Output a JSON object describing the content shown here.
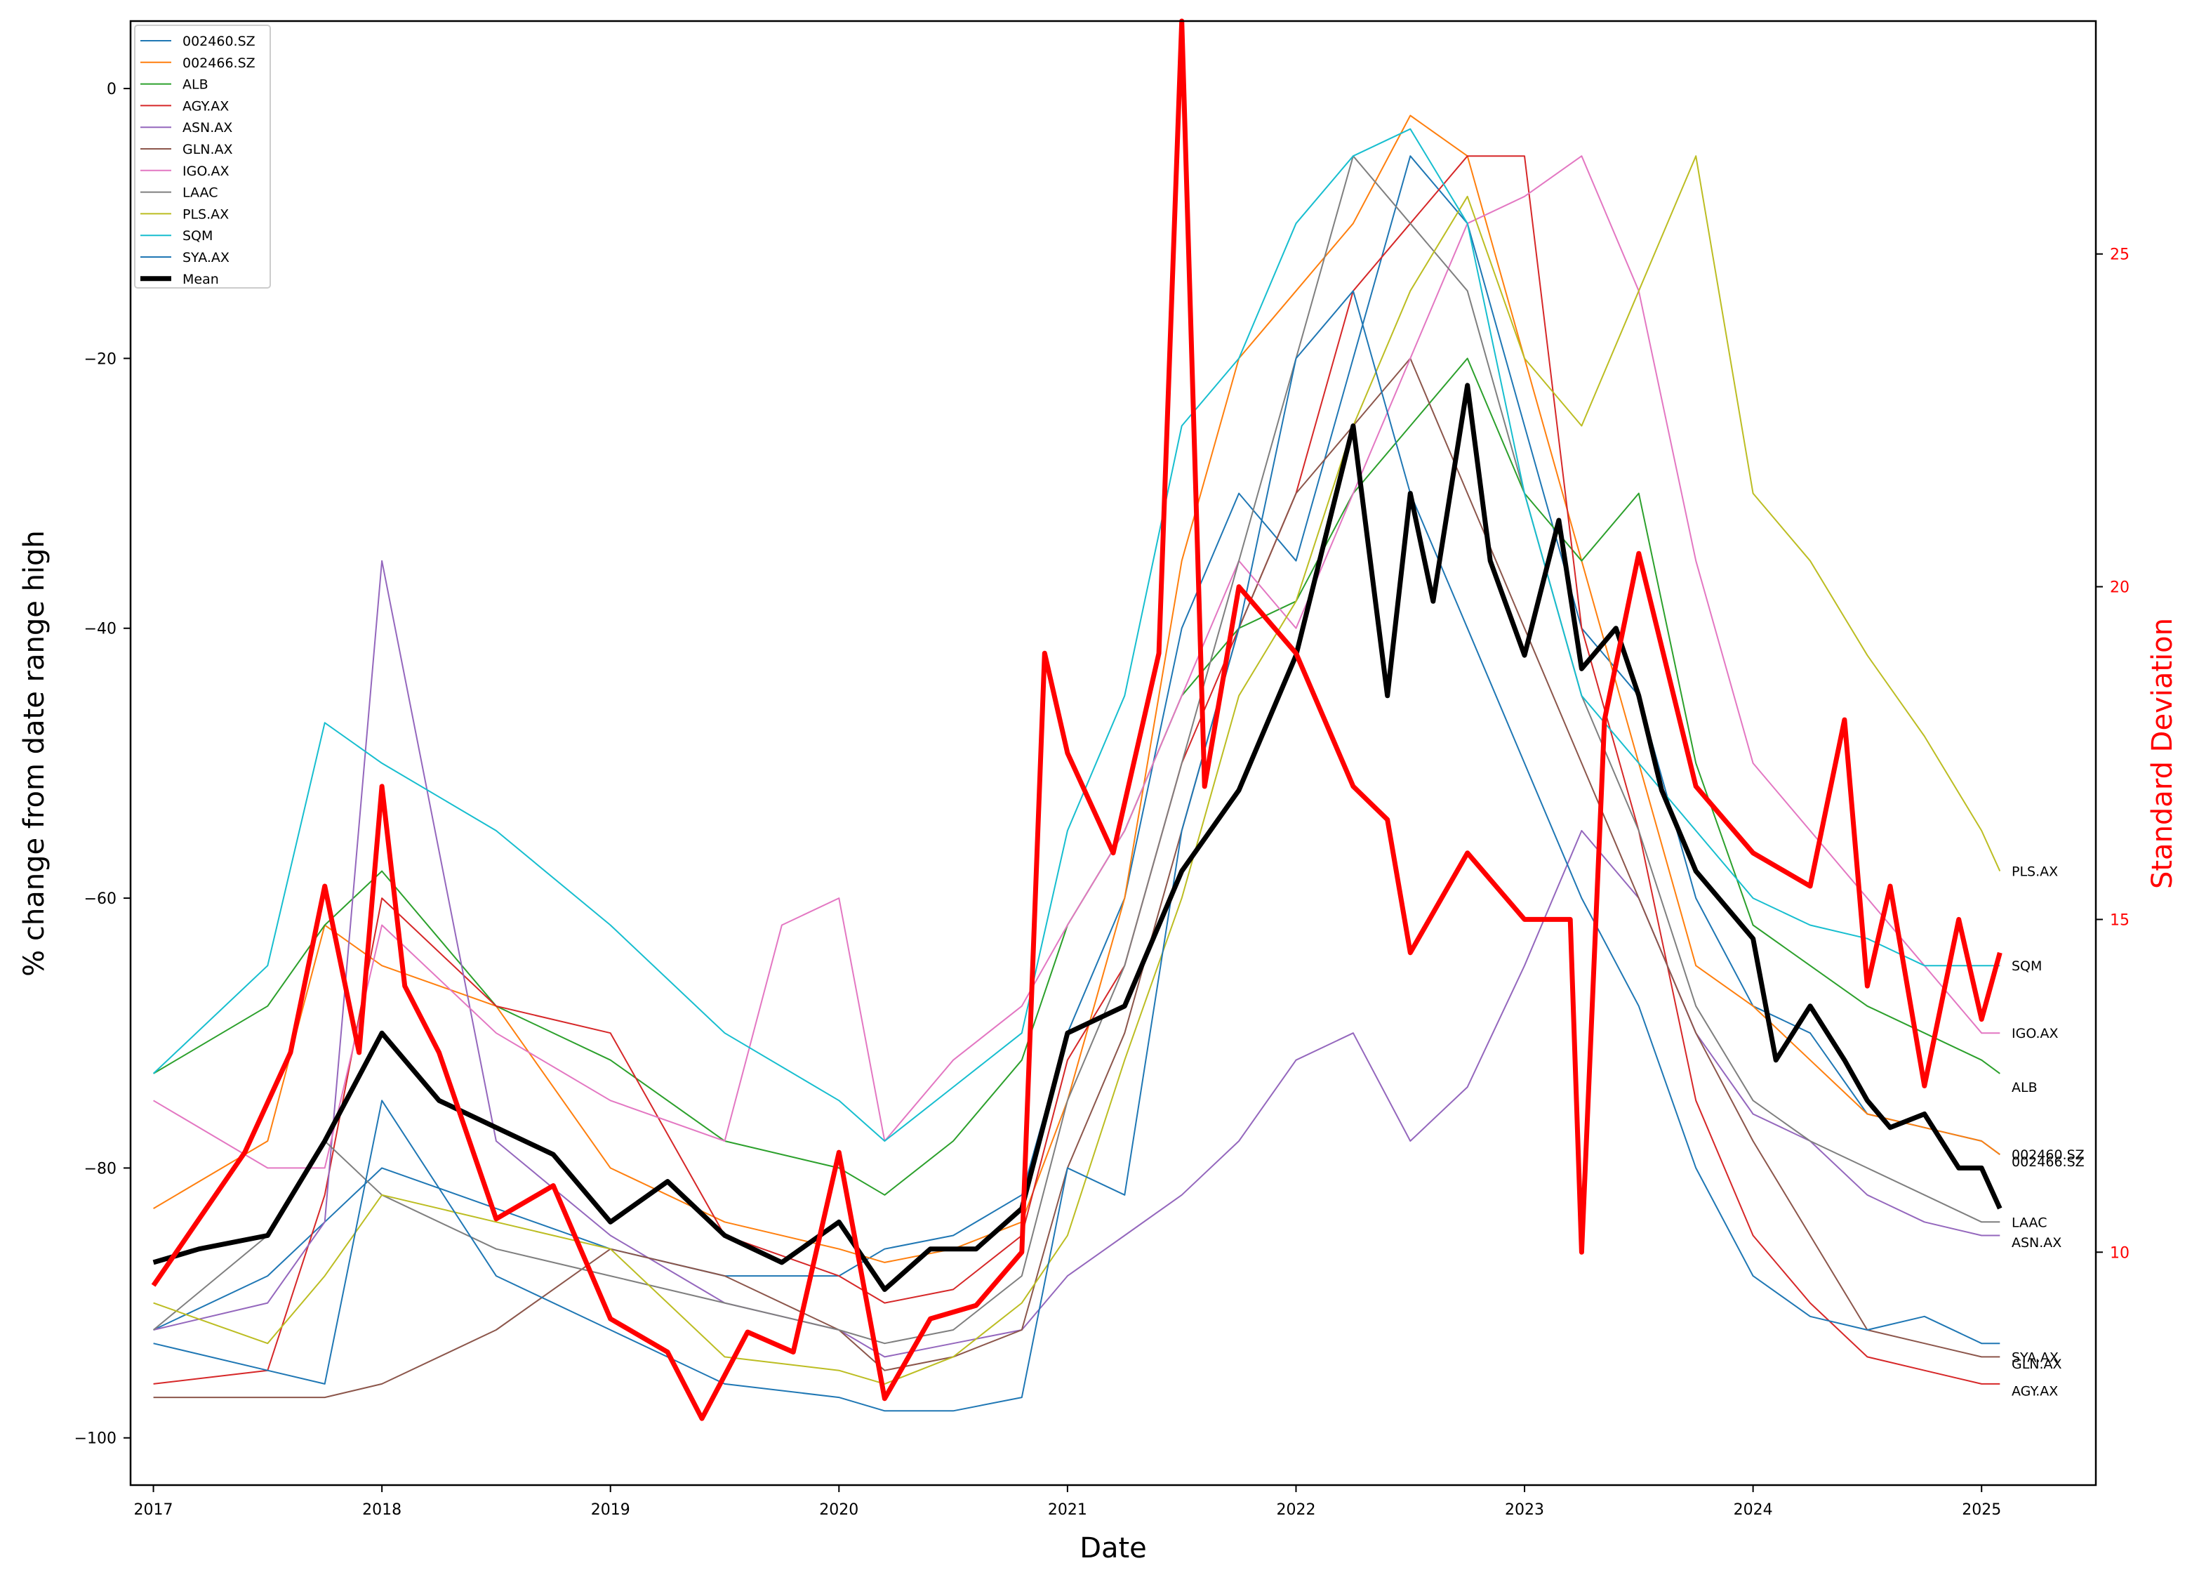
{
  "chart_data": {
    "type": "line",
    "title": "",
    "xlabel": "Date",
    "ylabel": "% change from date range high",
    "ylabel_right": "Standard Deviation",
    "xlim": [
      2016.9,
      2025.5
    ],
    "ylim": [
      -103.5,
      5
    ],
    "ylim_right": [
      6.5,
      28.5
    ],
    "x_ticks": [
      2017,
      2018,
      2019,
      2020,
      2021,
      2022,
      2023,
      2024,
      2025
    ],
    "x_tick_labels": [
      "2017",
      "2018",
      "2019",
      "2020",
      "2021",
      "2022",
      "2023",
      "2024",
      "2025"
    ],
    "y_ticks": [
      0,
      -20,
      -40,
      -60,
      -80,
      -100
    ],
    "y_tick_labels": [
      "0",
      "−20",
      "−40",
      "−60",
      "−80",
      "−100"
    ],
    "y_right_ticks": [
      10,
      15,
      20,
      25
    ],
    "y_right_tick_labels": [
      "10",
      "15",
      "20",
      "25"
    ],
    "grid": false,
    "legend_position": "top-left",
    "legend": [
      "002460.SZ",
      "002466.SZ",
      "ALB",
      "AGY.AX",
      "ASN.AX",
      "GLN.AX",
      "IGO.AX",
      "LAAC",
      "PLS.AX",
      "SQM",
      "SYA.AX",
      "Mean"
    ],
    "series": [
      {
        "name": "002460.SZ",
        "color": "#1f77b4",
        "axis": "left",
        "x": [
          2017.0,
          2017.5,
          2017.75,
          2018.0,
          2018.5,
          2019.0,
          2019.5,
          2020.0,
          2020.2,
          2020.5,
          2020.8,
          2021.0,
          2021.25,
          2021.5,
          2021.75,
          2022.0,
          2022.25,
          2022.5,
          2022.75,
          2023.0,
          2023.25,
          2023.5,
          2023.75,
          2024.0,
          2024.25,
          2024.5,
          2024.75,
          2025.0,
          2025.08
        ],
        "y": [
          -92,
          -88,
          -84,
          -80,
          -83,
          -86,
          -88,
          -88,
          -86,
          -85,
          -82,
          -70,
          -60,
          -40,
          -30,
          -35,
          -20,
          -5,
          -10,
          -25,
          -40,
          -45,
          -60,
          -68,
          -70,
          -76,
          -77,
          -78,
          -79
        ]
      },
      {
        "name": "002466.SZ",
        "color": "#ff7f0e",
        "axis": "left",
        "x": [
          2017.0,
          2017.5,
          2017.75,
          2018.0,
          2018.5,
          2019.0,
          2019.5,
          2020.0,
          2020.2,
          2020.5,
          2020.8,
          2021.0,
          2021.25,
          2021.5,
          2021.75,
          2022.0,
          2022.25,
          2022.5,
          2022.75,
          2023.0,
          2023.25,
          2023.5,
          2023.75,
          2024.0,
          2024.25,
          2024.5,
          2024.75,
          2025.0,
          2025.08
        ],
        "y": [
          -83,
          -78,
          -62,
          -65,
          -68,
          -80,
          -84,
          -86,
          -87,
          -86,
          -84,
          -75,
          -60,
          -35,
          -20,
          -15,
          -10,
          -2,
          -5,
          -20,
          -35,
          -50,
          -65,
          -68,
          -72,
          -76,
          -77,
          -78,
          -79
        ]
      },
      {
        "name": "ALB",
        "color": "#2ca02c",
        "axis": "left",
        "x": [
          2017.0,
          2017.5,
          2017.75,
          2018.0,
          2018.5,
          2019.0,
          2019.5,
          2020.0,
          2020.2,
          2020.5,
          2020.8,
          2021.0,
          2021.25,
          2021.5,
          2021.75,
          2022.0,
          2022.25,
          2022.5,
          2022.75,
          2023.0,
          2023.25,
          2023.5,
          2023.75,
          2024.0,
          2024.25,
          2024.5,
          2024.75,
          2025.0,
          2025.08
        ],
        "y": [
          -73,
          -68,
          -62,
          -58,
          -68,
          -72,
          -78,
          -80,
          -82,
          -78,
          -72,
          -62,
          -55,
          -45,
          -40,
          -38,
          -30,
          -25,
          -20,
          -30,
          -35,
          -30,
          -50,
          -62,
          -65,
          -68,
          -70,
          -72,
          -73
        ]
      },
      {
        "name": "AGY.AX",
        "color": "#d62728",
        "axis": "left",
        "x": [
          2017.0,
          2017.5,
          2017.75,
          2018.0,
          2018.5,
          2019.0,
          2019.5,
          2020.0,
          2020.2,
          2020.5,
          2020.8,
          2021.0,
          2021.25,
          2021.5,
          2021.75,
          2022.0,
          2022.25,
          2022.5,
          2022.75,
          2023.0,
          2023.25,
          2023.5,
          2023.75,
          2024.0,
          2024.25,
          2024.5,
          2024.75,
          2025.0,
          2025.08
        ],
        "y": [
          -96,
          -95,
          -82,
          -60,
          -68,
          -70,
          -85,
          -88,
          -90,
          -89,
          -85,
          -72,
          -65,
          -50,
          -40,
          -30,
          -15,
          -10,
          -5,
          -5,
          -40,
          -55,
          -75,
          -85,
          -90,
          -94,
          -95,
          -96,
          -96
        ]
      },
      {
        "name": "ASN.AX",
        "color": "#9467bd",
        "axis": "left",
        "x": [
          2017.0,
          2017.5,
          2017.75,
          2018.0,
          2018.5,
          2019.0,
          2019.5,
          2020.0,
          2020.2,
          2020.5,
          2020.8,
          2021.0,
          2021.25,
          2021.5,
          2021.75,
          2022.0,
          2022.25,
          2022.5,
          2022.75,
          2023.0,
          2023.25,
          2023.5,
          2023.75,
          2024.0,
          2024.25,
          2024.5,
          2024.75,
          2025.0,
          2025.08
        ],
        "y": [
          -92,
          -90,
          -84,
          -35,
          -78,
          -85,
          -90,
          -92,
          -94,
          -93,
          -92,
          -88,
          -85,
          -82,
          -78,
          -72,
          -70,
          -78,
          -74,
          -65,
          -55,
          -60,
          -70,
          -76,
          -78,
          -82,
          -84,
          -85,
          -85
        ]
      },
      {
        "name": "GLN.AX",
        "color": "#8c564b",
        "axis": "left",
        "x": [
          2017.0,
          2017.5,
          2017.75,
          2018.0,
          2018.5,
          2019.0,
          2019.5,
          2020.0,
          2020.2,
          2020.5,
          2020.8,
          2021.0,
          2021.25,
          2021.5,
          2021.75,
          2022.0,
          2022.25,
          2022.5,
          2022.75,
          2023.0,
          2023.25,
          2023.5,
          2023.75,
          2024.0,
          2024.25,
          2024.5,
          2024.75,
          2025.0,
          2025.08
        ],
        "y": [
          -97,
          -97,
          -97,
          -96,
          -92,
          -86,
          -88,
          -92,
          -95,
          -94,
          -92,
          -80,
          -70,
          -55,
          -40,
          -30,
          -25,
          -20,
          -30,
          -40,
          -50,
          -60,
          -70,
          -78,
          -85,
          -92,
          -93,
          -94,
          -94
        ]
      },
      {
        "name": "IGO.AX",
        "color": "#e377c2",
        "axis": "left",
        "x": [
          2017.0,
          2017.5,
          2017.75,
          2018.0,
          2018.5,
          2019.0,
          2019.5,
          2019.75,
          2020.0,
          2020.2,
          2020.5,
          2020.8,
          2021.0,
          2021.25,
          2021.5,
          2021.75,
          2022.0,
          2022.25,
          2022.5,
          2022.75,
          2023.0,
          2023.25,
          2023.5,
          2023.75,
          2024.0,
          2024.25,
          2024.5,
          2024.75,
          2025.0,
          2025.08
        ],
        "y": [
          -75,
          -80,
          -80,
          -62,
          -70,
          -75,
          -78,
          -62,
          -60,
          -78,
          -72,
          -68,
          -62,
          -55,
          -45,
          -35,
          -40,
          -30,
          -20,
          -10,
          -8,
          -5,
          -15,
          -35,
          -50,
          -55,
          -60,
          -65,
          -70,
          -70
        ]
      },
      {
        "name": "LAAC",
        "color": "#7f7f7f",
        "axis": "left",
        "x": [
          2017.0,
          2017.5,
          2017.75,
          2018.0,
          2018.5,
          2019.0,
          2019.5,
          2020.0,
          2020.2,
          2020.5,
          2020.8,
          2021.0,
          2021.25,
          2021.5,
          2021.75,
          2022.0,
          2022.25,
          2022.5,
          2022.75,
          2023.0,
          2023.25,
          2023.5,
          2023.75,
          2024.0,
          2024.25,
          2024.5,
          2024.75,
          2025.0,
          2025.08
        ],
        "y": [
          -92,
          -85,
          -78,
          -82,
          -86,
          -88,
          -90,
          -92,
          -93,
          -92,
          -88,
          -75,
          -65,
          -50,
          -35,
          -20,
          -5,
          -10,
          -15,
          -30,
          -45,
          -55,
          -68,
          -75,
          -78,
          -80,
          -82,
          -84,
          -84
        ]
      },
      {
        "name": "PLS.AX",
        "color": "#bcbd22",
        "axis": "left",
        "x": [
          2017.0,
          2017.5,
          2017.75,
          2018.0,
          2018.5,
          2019.0,
          2019.5,
          2020.0,
          2020.2,
          2020.5,
          2020.8,
          2021.0,
          2021.25,
          2021.5,
          2021.75,
          2022.0,
          2022.25,
          2022.5,
          2022.75,
          2023.0,
          2023.25,
          2023.5,
          2023.75,
          2024.0,
          2024.25,
          2024.5,
          2024.75,
          2025.0,
          2025.08
        ],
        "y": [
          -90,
          -93,
          -88,
          -82,
          -84,
          -86,
          -94,
          -95,
          -96,
          -94,
          -90,
          -85,
          -72,
          -60,
          -45,
          -38,
          -25,
          -15,
          -8,
          -20,
          -25,
          -15,
          -5,
          -30,
          -35,
          -42,
          -48,
          -55,
          -58
        ]
      },
      {
        "name": "SQM",
        "color": "#17becf",
        "axis": "left",
        "x": [
          2017.0,
          2017.5,
          2017.75,
          2018.0,
          2018.5,
          2019.0,
          2019.5,
          2020.0,
          2020.2,
          2020.5,
          2020.8,
          2021.0,
          2021.25,
          2021.5,
          2021.75,
          2022.0,
          2022.25,
          2022.5,
          2022.75,
          2023.0,
          2023.25,
          2023.5,
          2023.75,
          2024.0,
          2024.25,
          2024.5,
          2024.75,
          2025.0,
          2025.08
        ],
        "y": [
          -73,
          -65,
          -47,
          -50,
          -55,
          -62,
          -70,
          -75,
          -78,
          -74,
          -70,
          -55,
          -45,
          -25,
          -20,
          -10,
          -5,
          -3,
          -10,
          -30,
          -45,
          -50,
          -55,
          -60,
          -62,
          -63,
          -65,
          -65,
          -65
        ]
      },
      {
        "name": "SYA.AX",
        "color": "#1f77b4",
        "axis": "left",
        "x": [
          2017.0,
          2017.5,
          2017.75,
          2018.0,
          2018.5,
          2019.0,
          2019.5,
          2020.0,
          2020.2,
          2020.5,
          2020.8,
          2021.0,
          2021.25,
          2021.5,
          2021.75,
          2022.0,
          2022.25,
          2022.5,
          2022.75,
          2023.0,
          2023.25,
          2023.5,
          2023.75,
          2024.0,
          2024.25,
          2024.5,
          2024.75,
          2025.0,
          2025.08
        ],
        "y": [
          -93,
          -95,
          -96,
          -75,
          -88,
          -92,
          -96,
          -97,
          -98,
          -98,
          -97,
          -80,
          -82,
          -55,
          -40,
          -20,
          -15,
          -30,
          -40,
          -50,
          -60,
          -68,
          -80,
          -88,
          -91,
          -92,
          -91,
          -93,
          -93
        ]
      },
      {
        "name": "Mean",
        "color": "#000000",
        "axis": "left",
        "x": [
          2017.0,
          2017.2,
          2017.5,
          2017.75,
          2018.0,
          2018.25,
          2018.5,
          2018.75,
          2019.0,
          2019.25,
          2019.5,
          2019.75,
          2020.0,
          2020.2,
          2020.4,
          2020.6,
          2020.8,
          2021.0,
          2021.25,
          2021.5,
          2021.75,
          2022.0,
          2022.25,
          2022.4,
          2022.5,
          2022.6,
          2022.75,
          2022.85,
          2023.0,
          2023.15,
          2023.25,
          2023.4,
          2023.5,
          2023.6,
          2023.75,
          2024.0,
          2024.1,
          2024.25,
          2024.4,
          2024.5,
          2024.6,
          2024.75,
          2024.9,
          2025.0,
          2025.08
        ],
        "y": [
          -87,
          -86,
          -85,
          -78,
          -70,
          -75,
          -77,
          -79,
          -84,
          -81,
          -85,
          -87,
          -84,
          -89,
          -86,
          -86,
          -83,
          -70,
          -68,
          -58,
          -52,
          -42,
          -25,
          -45,
          -30,
          -38,
          -22,
          -35,
          -42,
          -32,
          -43,
          -40,
          -45,
          -52,
          -58,
          -63,
          -72,
          -68,
          -72,
          -75,
          -77,
          -76,
          -80,
          -80,
          -83
        ]
      },
      {
        "name": "",
        "color": "#ff0000",
        "axis": "right",
        "x": [
          2017.0,
          2017.2,
          2017.4,
          2017.6,
          2017.75,
          2017.9,
          2018.0,
          2018.1,
          2018.25,
          2018.5,
          2018.75,
          2019.0,
          2019.25,
          2019.4,
          2019.6,
          2019.8,
          2020.0,
          2020.2,
          2020.4,
          2020.6,
          2020.8,
          2020.9,
          2021.0,
          2021.2,
          2021.4,
          2021.5,
          2021.6,
          2021.75,
          2022.0,
          2022.25,
          2022.4,
          2022.5,
          2022.75,
          2023.0,
          2023.2,
          2023.25,
          2023.35,
          2023.5,
          2023.75,
          2024.0,
          2024.25,
          2024.4,
          2024.5,
          2024.6,
          2024.75,
          2024.9,
          2025.0,
          2025.08
        ],
        "y": [
          9.5,
          10.5,
          11.5,
          13.0,
          15.5,
          13.0,
          17.0,
          14.0,
          13.0,
          10.5,
          11.0,
          9.0,
          8.5,
          7.5,
          8.8,
          8.5,
          11.5,
          7.8,
          9.0,
          9.2,
          10.0,
          19.0,
          17.5,
          16.0,
          19.0,
          28.5,
          17.0,
          20.0,
          19.0,
          17.0,
          16.5,
          14.5,
          16.0,
          15.0,
          15.0,
          10.0,
          18.0,
          20.5,
          17.0,
          16.0,
          15.5,
          18.0,
          14.0,
          15.5,
          12.5,
          15.0,
          13.5,
          14.5
        ]
      }
    ],
    "end_labels": [
      {
        "text": "PLS.AX",
        "y": -58
      },
      {
        "text": "SQM",
        "y": -65
      },
      {
        "text": "IGO.AX",
        "y": -70
      },
      {
        "text": "ALB",
        "y": -74
      },
      {
        "text": "002460.SZ",
        "y": -79
      },
      {
        "text": "002466.SZ",
        "y": -79.5
      },
      {
        "text": "LAAC",
        "y": -84
      },
      {
        "text": "ASN.AX",
        "y": -85.5
      },
      {
        "text": "SYA.AX",
        "y": -94
      },
      {
        "text": "GLN.AX",
        "y": -94.5
      },
      {
        "text": "AGY.AX",
        "y": -96.5
      }
    ]
  }
}
